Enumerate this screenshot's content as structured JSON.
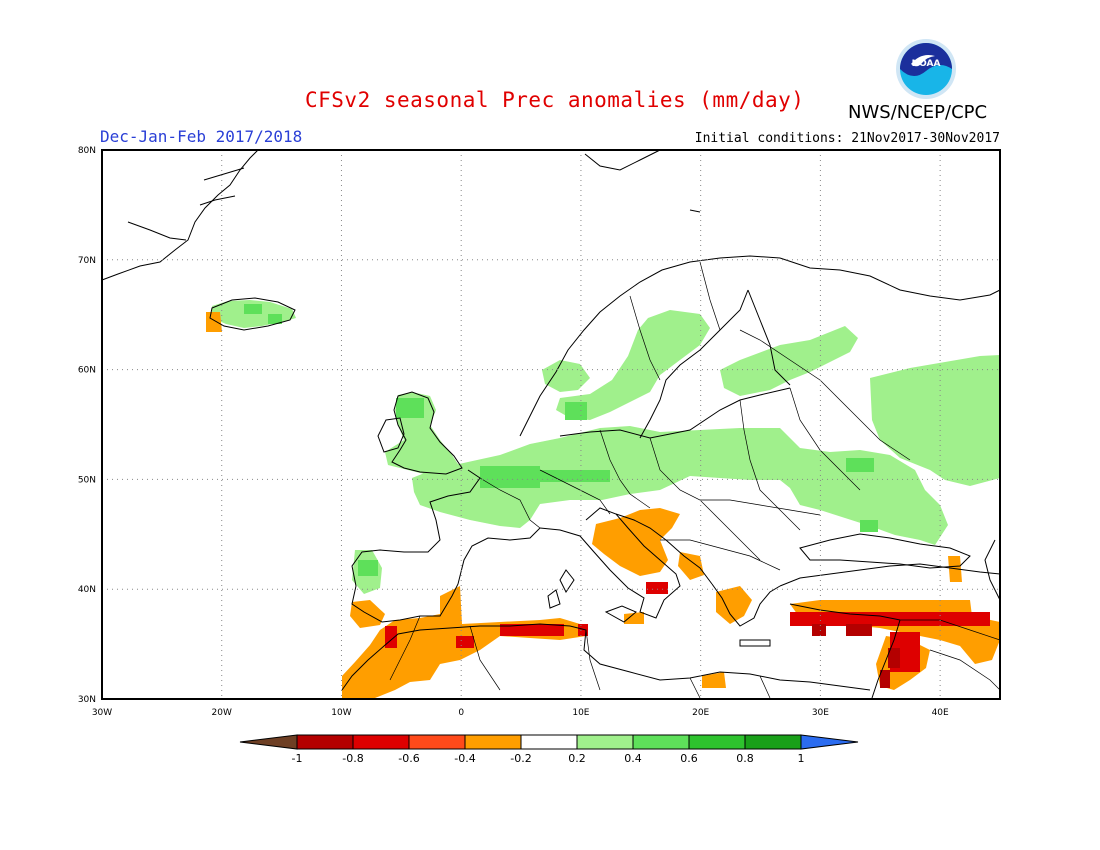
{
  "header": {
    "title": "CFSv2 seasonal Prec anomalies (mm/day)",
    "season": "Dec-Jan-Feb 2017/2018",
    "initial_conditions": "Initial conditions: 21Nov2017-30Nov2017",
    "agency": "NWS/NCEP/CPC",
    "logo_text": "NOAA"
  },
  "map": {
    "lon_range": [
      -30,
      45
    ],
    "lat_range": [
      30,
      80
    ],
    "grid": true,
    "lon_ticks": [
      "30W",
      "20W",
      "10W",
      "0",
      "10E",
      "20E",
      "30E",
      "40E"
    ],
    "lat_ticks": [
      "30N",
      "40N",
      "50N",
      "60N",
      "70N",
      "80N"
    ]
  },
  "legend": {
    "labels": [
      "-1",
      "-0.8",
      "-0.6",
      "-0.4",
      "-0.2",
      "0.2",
      "0.4",
      "0.6",
      "0.8",
      "1"
    ],
    "colors": [
      "#6e3f24",
      "#b40000",
      "#de0000",
      "#ff4a1a",
      "#ff9e00",
      "#ffffff",
      "#a0f08c",
      "#5ee05a",
      "#2ec32e",
      "#19a019",
      "#2b6cf0"
    ]
  },
  "colors": {
    "title": "#e00000",
    "season": "#2a3fd6",
    "wet_light": "#a0f08c",
    "wet_medium": "#5ee05a",
    "dry_light": "#ff9e00",
    "dry_medium": "#ff4a1a",
    "dry_strong": "#de0000",
    "dry_extreme": "#b40000"
  }
}
